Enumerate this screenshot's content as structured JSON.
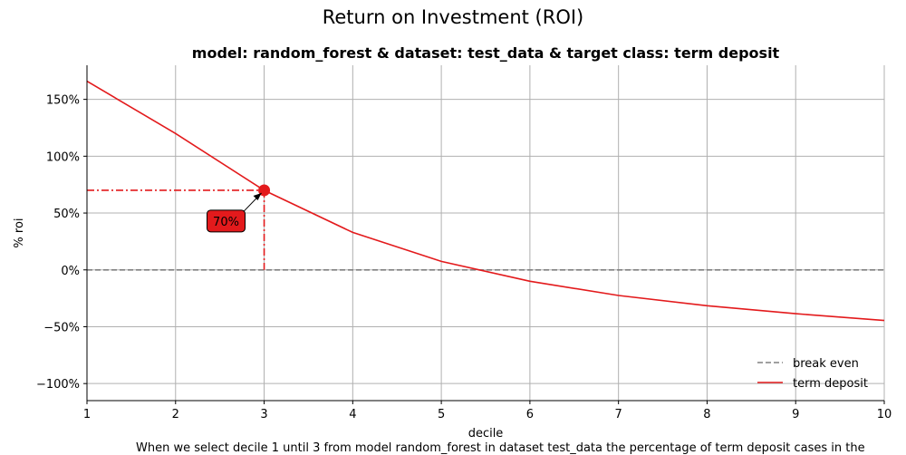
{
  "chart_data": {
    "type": "line",
    "suptitle": "Return on Investment (ROI)",
    "title": "model: random_forest & dataset: test_data & target class: term deposit",
    "xlabel": "decile",
    "ylabel": "% roi",
    "xlim": [
      1,
      10
    ],
    "ylim": [
      -115,
      180
    ],
    "x_ticks": [
      1,
      2,
      3,
      4,
      5,
      6,
      7,
      8,
      9,
      10
    ],
    "y_ticks": [
      -100,
      -50,
      0,
      50,
      100,
      150
    ],
    "y_tick_labels": [
      "−100%",
      "−50%",
      "0%",
      "50%",
      "100%",
      "150%"
    ],
    "grid": true,
    "legend_position": "bottom-right",
    "series": [
      {
        "name": "break even",
        "color": "#808080",
        "style": "dashed",
        "x": [
          1,
          10
        ],
        "values": [
          0,
          0
        ]
      },
      {
        "name": "term deposit",
        "color": "#e31a1c",
        "style": "solid",
        "x": [
          1,
          2,
          3,
          4,
          5,
          6,
          7,
          8,
          9,
          10
        ],
        "values": [
          166,
          120,
          70,
          33,
          7.5,
          -10,
          -22.5,
          -31.5,
          -38.5,
          -44.5
        ]
      }
    ],
    "highlight": {
      "x": 3,
      "y": 70,
      "label": "70%",
      "label_x": 2.57,
      "label_y": 43,
      "color": "#e31a1c"
    }
  },
  "caption": "When we select decile 1 until 3 from model random_forest in dataset test_data the percentage of term deposit cases in the"
}
